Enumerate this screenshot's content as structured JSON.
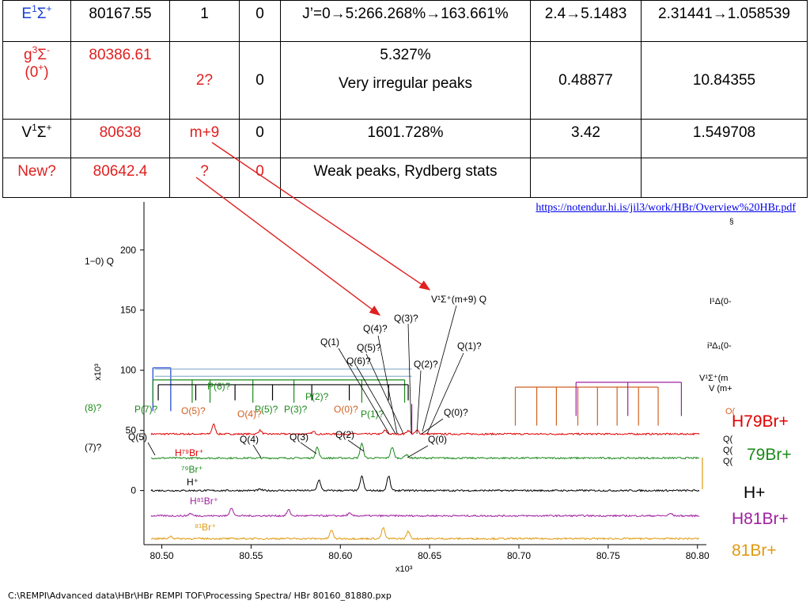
{
  "table": {
    "rows": [
      {
        "state_parts": [
          "E",
          "1",
          "Σ",
          "+"
        ],
        "state_color": "#1a3fd6",
        "energy": "80167.55",
        "energy_color": "#000000",
        "v": "1",
        "v_color": "#000000",
        "col4": "0",
        "notes": [
          "J’=0→5:266.268%→163.661%"
        ],
        "col6": "2.4→5.1483",
        "col7": "2.31441→1.058539"
      },
      {
        "state_parts": [
          "g",
          "3",
          "Σ",
          "-"
        ],
        "state_line2": "(0",
        "state_line2_sup": "+",
        "state_line2_end": ")",
        "state_color": "#e02020",
        "energy": "80386.61",
        "energy_color": "#e02020",
        "v": "2?",
        "v_color": "#e02020",
        "col4": "0",
        "notes": [
          "5.327%",
          "Very irregular peaks"
        ],
        "col6": "0.48877",
        "col7": "10.84355"
      },
      {
        "state_parts": [
          "V",
          "1",
          "Σ",
          "+"
        ],
        "state_color": "#000000",
        "energy": "80638",
        "energy_color": "#e02020",
        "v": "m+9",
        "v_color": "#e02020",
        "col4": "0",
        "notes": [
          "1601.728%"
        ],
        "col6": "3.42",
        "col7": "1.549708"
      },
      {
        "state_parts": [
          "New?",
          "",
          "",
          ""
        ],
        "state_color": "#e02020",
        "energy": "80642.4",
        "energy_color": "#e02020",
        "v": "?",
        "v_color": "#e02020",
        "col4": "0",
        "notes": [
          "Weak peaks, Rydberg stats"
        ],
        "col6": "",
        "col7": ""
      }
    ]
  },
  "link": "https://notendur.hi.is/jil3/work/HBr/Overview%20HBr.pdf",
  "file_path": "C:\\REMPI\\Advanced data\\HBr\\HBr REMPI TOF\\Processing Spectra/ HBr 80160_81880.pxp",
  "legend": [
    {
      "label": "H79Br+",
      "color": "#e00000"
    },
    {
      "label": "79Br+",
      "color": "#1a8a1a"
    },
    {
      "label": "H+",
      "color": "#000000"
    },
    {
      "label": "H81Br+",
      "color": "#a020a0"
    },
    {
      "label": "81Br+",
      "color": "#e09a10"
    }
  ],
  "chart_data": {
    "type": "line",
    "xlabel": "x10³",
    "ylabel": "x10³",
    "xlim": [
      80.49,
      80.805
    ],
    "ylim": [
      -45,
      240
    ],
    "x_ticks": [
      "80.50",
      "80.55",
      "80.60",
      "80.65",
      "80.70",
      "80.75",
      "80.80"
    ],
    "y_ticks": [
      "0",
      "50",
      "100",
      "150",
      "200"
    ],
    "series": [
      {
        "name": "H79Br+",
        "color": "#e00000",
        "baseline": 47,
        "peaks": [
          [
            80.529,
            8
          ],
          [
            80.555,
            3
          ],
          [
            80.585,
            2
          ],
          [
            80.625,
            3
          ],
          [
            80.638,
            3
          ],
          [
            80.643,
            3
          ]
        ]
      },
      {
        "name": "79Br+",
        "color": "#1a8a1a",
        "baseline": 27,
        "peaks": [
          [
            80.587,
            9
          ],
          [
            80.612,
            12
          ],
          [
            80.629,
            9
          ],
          [
            80.637,
            3
          ]
        ]
      },
      {
        "name": "H+",
        "color": "#000000",
        "baseline": 0,
        "peaks": [
          [
            80.588,
            9
          ],
          [
            80.612,
            12
          ],
          [
            80.627,
            12
          ],
          [
            80.555,
            1
          ]
        ]
      },
      {
        "name": "H81Br+",
        "color": "#a020a0",
        "baseline": -21,
        "peaks": [
          [
            80.539,
            7
          ],
          [
            80.571,
            5
          ],
          [
            80.516,
            2
          ],
          [
            80.605,
            2
          ],
          [
            80.785,
            2
          ]
        ]
      },
      {
        "name": "81Br+",
        "color": "#e09a10",
        "baseline": -40,
        "peaks": [
          [
            80.595,
            7
          ],
          [
            80.624,
            9
          ],
          [
            80.638,
            6
          ],
          [
            80.505,
            2
          ]
        ]
      }
    ],
    "annotations": {
      "left_edge": [
        "1−0) Q",
        "(8)?",
        "(7)?"
      ],
      "top_label": "V¹Σ⁺(m+9) Q",
      "black_labels": [
        "Q(1)",
        "Q(4)?",
        "Q(3)?",
        "Q(5)?",
        "Q(6)?",
        "Q(2)?",
        "Q(1)?",
        "Q(0)?",
        "Q(5)",
        "Q(4)",
        "Q(3)",
        "Q(2)",
        "Q(0)"
      ],
      "green_labels": [
        "P(6)?",
        "P(2)?",
        "P(7)?",
        "P(3)?",
        "P(1)?",
        "P(5)?"
      ],
      "orange_labels": [
        "O(5)?",
        "O(4)?",
        "O(0)?"
      ],
      "right_edge": [
        "I¹Δ(0-",
        "i³Δ₁(0-",
        "V¹Σ⁺(m",
        "V (m+",
        "O(",
        "Q(",
        "Q(",
        "Q("
      ],
      "trace_labels": [
        "H⁷⁹Br⁺",
        "⁷⁹Br⁺",
        "H⁺",
        "H⁸¹Br⁺",
        "⁸¹Br⁺"
      ]
    }
  }
}
